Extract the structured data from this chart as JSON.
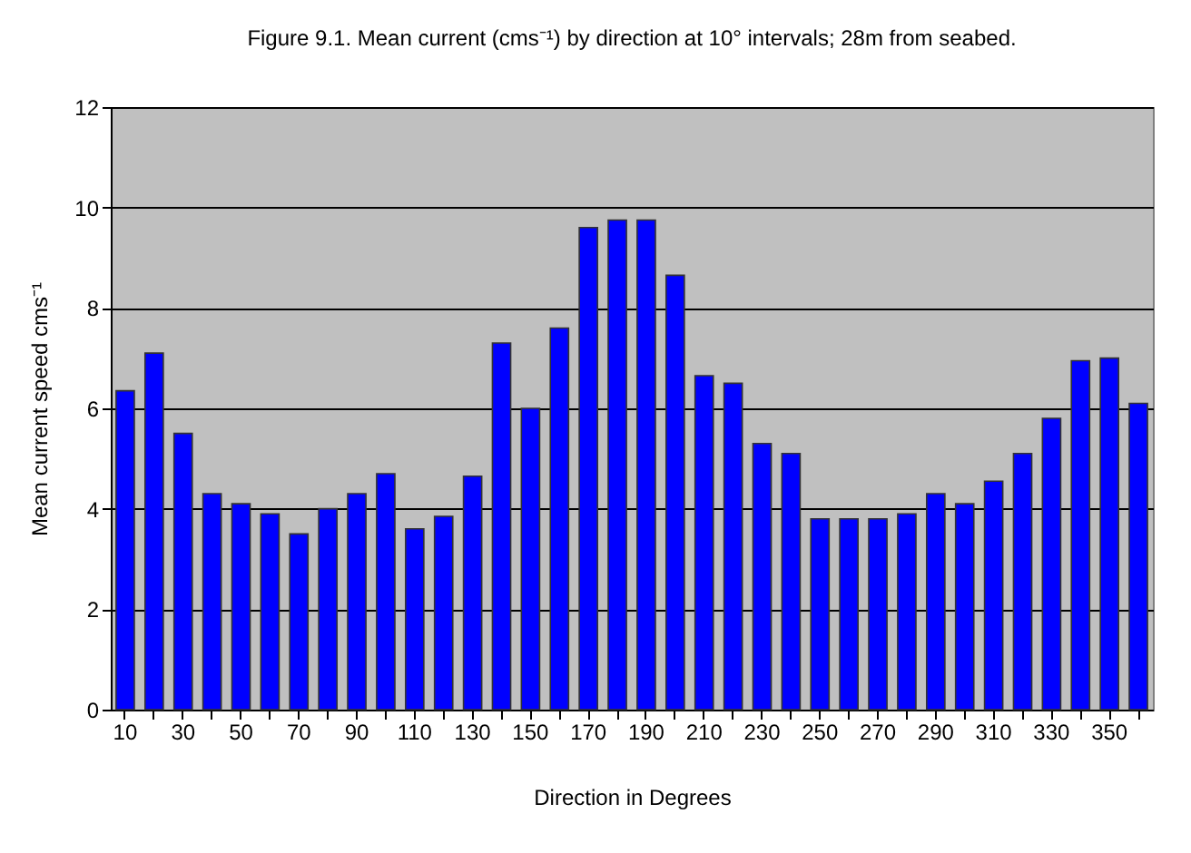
{
  "chart_data": {
    "type": "bar",
    "title": "Figure 9.1.  Mean current (cms⁻¹) by direction at 10° intervals;  28m from seabed.",
    "xlabel": "Direction in Degrees",
    "ylabel": "Mean current speed cms⁻¹",
    "categories": [
      "10",
      null,
      "30",
      null,
      "50",
      null,
      "70",
      null,
      "90",
      null,
      "110",
      null,
      "130",
      null,
      "150",
      null,
      "170",
      null,
      "190",
      null,
      "210",
      null,
      "230",
      null,
      "250",
      null,
      "270",
      null,
      "290",
      null,
      "310",
      null,
      "330",
      null,
      "350",
      null
    ],
    "values": [
      6.35,
      7.1,
      5.5,
      4.3,
      4.1,
      3.9,
      3.5,
      4.0,
      4.3,
      4.7,
      3.6,
      3.85,
      4.65,
      7.3,
      6.0,
      7.6,
      9.6,
      9.75,
      9.75,
      8.65,
      6.65,
      6.5,
      5.3,
      5.1,
      3.8,
      3.8,
      3.8,
      3.9,
      4.3,
      4.1,
      4.55,
      5.1,
      5.8,
      6.95,
      7.0,
      6.1
    ],
    "color": "#0000ff",
    "ylim": [
      0,
      12
    ],
    "yticks": [
      0,
      2,
      4,
      6,
      8,
      10,
      12
    ],
    "grid": "y"
  }
}
